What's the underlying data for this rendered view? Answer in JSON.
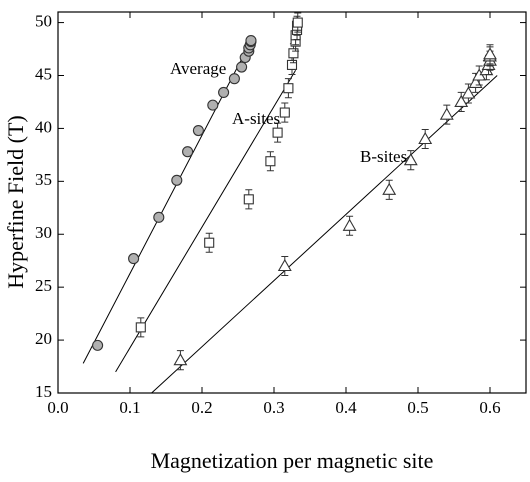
{
  "chart_data": {
    "type": "scatter",
    "xlabel": "Magnetization per magnetic site",
    "ylabel": "Hyperfine Field (T)",
    "xlim": [
      0,
      0.65
    ],
    "ylim": [
      15,
      51
    ],
    "xticks": [
      {
        "value": 0,
        "label": "0.0"
      },
      0.1,
      0.2,
      0.3,
      0.4,
      0.5,
      0.6
    ],
    "yticks": [
      15,
      20,
      25,
      30,
      35,
      40,
      45,
      50
    ],
    "grid": false,
    "series": [
      {
        "name": "Average",
        "marker": "circle",
        "color": "#333333",
        "fill": "#b0b0b0",
        "x": [
          0.055,
          0.105,
          0.14,
          0.165,
          0.18,
          0.195,
          0.215,
          0.23,
          0.245,
          0.255,
          0.26,
          0.265,
          0.265,
          0.267,
          0.268,
          0.268
        ],
        "values": [
          19.5,
          27.7,
          31.6,
          35.1,
          37.8,
          39.8,
          42.2,
          43.4,
          44.7,
          45.8,
          46.7,
          47.3,
          47.6,
          47.9,
          48.2,
          48.3
        ],
        "fit": {
          "x": [
            0.035,
            0.27
          ],
          "y": [
            17.8,
            48.5
          ]
        }
      },
      {
        "name": "A-sites",
        "marker": "square",
        "color": "#333333",
        "fill": "#ffffff",
        "x": [
          0.115,
          0.21,
          0.265,
          0.295,
          0.305,
          0.315,
          0.32,
          0.325,
          0.327,
          0.33,
          0.33,
          0.332,
          0.332,
          0.333
        ],
        "values": [
          21.2,
          29.2,
          33.3,
          36.9,
          39.6,
          41.5,
          43.8,
          46.0,
          47.1,
          48.2,
          48.8,
          49.3,
          49.7,
          50.0
        ],
        "errors": [
          0.9,
          0.9,
          0.9,
          0.9,
          0.9,
          0.9,
          0.9,
          0.9,
          0.9,
          0.9,
          0.9,
          0.9,
          0.9,
          0.9
        ],
        "fit": {
          "x": [
            0.08,
            0.33
          ],
          "y": [
            17.0,
            45.5
          ]
        }
      },
      {
        "name": "B-sites",
        "marker": "triangle",
        "color": "#333333",
        "fill": "#ffffff",
        "x": [
          0.17,
          0.315,
          0.405,
          0.46,
          0.49,
          0.51,
          0.54,
          0.56,
          0.57,
          0.58,
          0.585,
          0.595,
          0.598,
          0.6,
          0.6,
          0.6
        ],
        "values": [
          18.1,
          27.0,
          30.8,
          34.2,
          37.0,
          39.0,
          41.3,
          42.5,
          43.3,
          44.3,
          45.0,
          45.5,
          46.0,
          46.4,
          46.8,
          47.0
        ],
        "errors": [
          0.9,
          0.9,
          0.9,
          0.9,
          0.9,
          0.9,
          0.9,
          0.9,
          0.9,
          0.9,
          0.9,
          0.9,
          0.9,
          0.9,
          0.9,
          0.9
        ],
        "fit": {
          "x": [
            0.13,
            0.61
          ],
          "y": [
            15.0,
            45.0
          ]
        }
      }
    ]
  }
}
